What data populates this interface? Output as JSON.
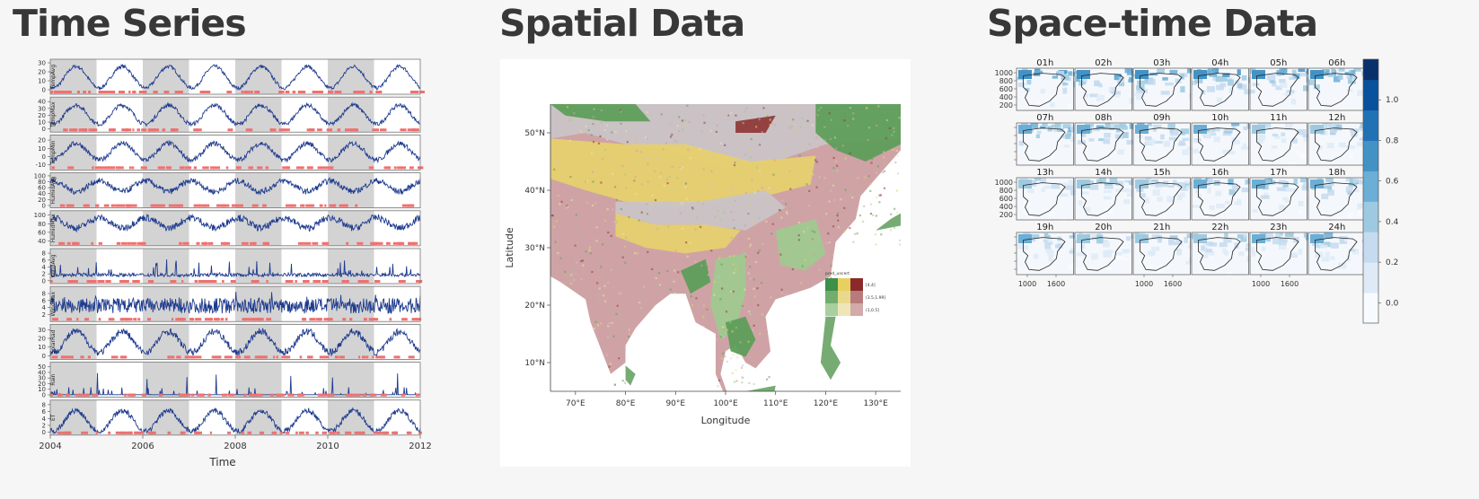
{
  "sections": {
    "time_series": {
      "title": "Time Series"
    },
    "spatial": {
      "title": "Spatial Data"
    },
    "space_time": {
      "title": "Space-time Data"
    }
  },
  "chart_data": [
    {
      "type": "line",
      "title": "Time Series",
      "xlabel": "Time",
      "x_ticks": [
        "2004",
        "2006",
        "2008",
        "2010",
        "2012"
      ],
      "xlim": [
        2004,
        2012
      ],
      "series_color": "#1f3b8f",
      "flag_color": "#f07070",
      "shade_color": "#d3d3d3",
      "panels": [
        {
          "name": "TempAvg",
          "ticks": [
            "30",
            "20",
            "10",
            "0"
          ],
          "ylim": [
            -3,
            32
          ],
          "pattern": "seasonal",
          "base": 14,
          "amp": 12,
          "noise": 2
        },
        {
          "name": "TempMax",
          "ticks": [
            "40",
            "30",
            "20",
            "10",
            "0"
          ],
          "ylim": [
            -2,
            44
          ],
          "pattern": "seasonal",
          "base": 21,
          "amp": 14,
          "noise": 3
        },
        {
          "name": "TempMin",
          "ticks": [
            "20",
            "10",
            "0",
            "-10"
          ],
          "ylim": [
            -14,
            24
          ],
          "pattern": "seasonal",
          "base": 6,
          "amp": 10,
          "noise": 3
        },
        {
          "name": "HumidAvg",
          "ticks": [
            "100",
            "80",
            "60",
            "40",
            "20",
            "0"
          ],
          "ylim": [
            -2,
            104
          ],
          "pattern": "seasonal-inv",
          "base": 65,
          "amp": 18,
          "noise": 10
        },
        {
          "name": "HumidMax",
          "ticks": [
            "100",
            "80",
            "60",
            "40"
          ],
          "ylim": [
            33,
            106
          ],
          "pattern": "seasonal-inv",
          "base": 82,
          "amp": 12,
          "noise": 8
        },
        {
          "name": "WindAvg",
          "ticks": [
            "8",
            "6",
            "4",
            "2",
            "0"
          ],
          "ylim": [
            -0.3,
            8.8
          ],
          "pattern": "spiky",
          "base": 1.2,
          "amp": 0.3,
          "noise": 1
        },
        {
          "name": "WindMax",
          "ticks": [
            "8",
            "6",
            "4",
            "2"
          ],
          "ylim": [
            0.5,
            9.5
          ],
          "pattern": "noisy",
          "base": 4.5,
          "amp": 0.4,
          "noise": 2.2
        },
        {
          "name": "SolarRad",
          "ticks": [
            "30",
            "20",
            "10",
            "0"
          ],
          "ylim": [
            -2,
            34
          ],
          "pattern": "seasonal",
          "base": 16,
          "amp": 12,
          "noise": 4
        },
        {
          "name": "Rain",
          "ticks": [
            "50",
            "40",
            "30",
            "20",
            "10",
            "0"
          ],
          "ylim": [
            -1,
            55
          ],
          "pattern": "rain",
          "base": 0,
          "amp": 0,
          "noise": 0
        },
        {
          "name": "ET",
          "ticks": [
            "8",
            "6",
            "4",
            "2",
            "0"
          ],
          "ylim": [
            -0.3,
            8.8
          ],
          "pattern": "seasonal",
          "base": 3.3,
          "amp": 3,
          "noise": 0.8
        }
      ]
    },
    {
      "type": "heatmap",
      "title": "",
      "xlabel": "Longitude",
      "ylabel": "Latitude",
      "x_ticks": [
        "70°E",
        "80°E",
        "90°E",
        "100°E",
        "110°E",
        "120°E",
        "130°E"
      ],
      "y_ticks": [
        "50°N",
        "40°N",
        "30°N",
        "20°N",
        "10°N"
      ],
      "xlim": [
        65,
        135
      ],
      "ylim": [
        5,
        55
      ],
      "legend_title": "pred_uncert",
      "legend_row_labels": [
        "[4,4]",
        "(3.5,1.99]",
        "(1,0.5]"
      ],
      "legend_colors": [
        [
          "#3d8f4a",
          "#e8d060",
          "#8b2a2a"
        ],
        [
          "#72ad6e",
          "#e9d98c",
          "#b77b7b"
        ],
        [
          "#a8cf9e",
          "#efe6b8",
          "#d2aaaa"
        ]
      ],
      "legend_placement": "bottom-right",
      "palette": {
        "green": "#5e9e5a",
        "light_green": "#9fc98f",
        "yellow": "#e6d06e",
        "pale_yellow": "#efe3a8",
        "grey": "#c9c4c6",
        "pink": "#cfa3a5",
        "dark_red": "#8f3a3a",
        "white": "#ffffff"
      }
    },
    {
      "type": "heatmap",
      "title": "",
      "panel_titles": [
        "01h",
        "02h",
        "03h",
        "04h",
        "05h",
        "06h",
        "07h",
        "08h",
        "09h",
        "10h",
        "11h",
        "12h",
        "13h",
        "14h",
        "15h",
        "16h",
        "17h",
        "18h",
        "19h",
        "20h",
        "21h",
        "22h",
        "23h",
        "24h"
      ],
      "y_ticks": [
        "1000",
        "800",
        "600",
        "400",
        "200"
      ],
      "x_ticks": [
        "1000",
        "1600"
      ],
      "colorbar_ticks": [
        "1.0",
        "0.8",
        "0.6",
        "0.4",
        "0.2",
        "0.0"
      ],
      "colorbar_range": [
        -0.1,
        1.2
      ],
      "colorbar_colors": [
        "#f7fbff",
        "#deebf7",
        "#c6dbef",
        "#9ecae1",
        "#6baed6",
        "#4292c6",
        "#2171b5",
        "#08519c",
        "#08306b"
      ],
      "intensity_by_hour": [
        0.55,
        0.55,
        0.5,
        0.55,
        0.5,
        0.5,
        0.45,
        0.45,
        0.45,
        0.4,
        0.35,
        0.35,
        0.3,
        0.35,
        0.35,
        0.4,
        0.4,
        0.45,
        0.4,
        0.35,
        0.35,
        0.35,
        0.4,
        0.45
      ]
    }
  ]
}
